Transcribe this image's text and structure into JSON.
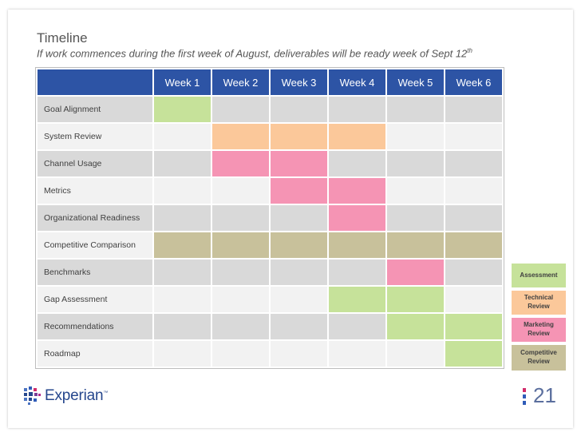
{
  "title": "Timeline",
  "subtitle": "If work commences during the first week of August, deliverables will be ready week of Sept 12",
  "subtitle_sup": "th",
  "weeks": [
    "Week 1",
    "Week 2",
    "Week 3",
    "Week 4",
    "Week 5",
    "Week 6"
  ],
  "colors": {
    "header": "#2d54a5",
    "green": "#c6e29a",
    "orange": "#fbc89a",
    "pink": "#f594b4",
    "khaki": "#c8c19b",
    "row_dark": "#d9d9d9",
    "row_light": "#f2f2f2"
  },
  "tasks": [
    {
      "label": "Goal Alignment",
      "cells": [
        "green",
        "",
        "",
        "",
        "",
        ""
      ]
    },
    {
      "label": "System Review",
      "cells": [
        "",
        "orange",
        "orange",
        "orange",
        "",
        ""
      ]
    },
    {
      "label": "Channel Usage",
      "cells": [
        "",
        "pink",
        "pink",
        "",
        "",
        ""
      ]
    },
    {
      "label": "Metrics",
      "cells": [
        "",
        "",
        "pink",
        "pink",
        "",
        ""
      ]
    },
    {
      "label": "Organizational Readiness",
      "cells": [
        "",
        "",
        "",
        "pink",
        "",
        ""
      ]
    },
    {
      "label": "Competitive Comparison",
      "cells": [
        "khaki",
        "khaki",
        "khaki",
        "khaki",
        "khaki",
        "khaki"
      ]
    },
    {
      "label": "Benchmarks",
      "cells": [
        "",
        "",
        "",
        "",
        "pink",
        ""
      ]
    },
    {
      "label": "Gap Assessment",
      "cells": [
        "",
        "",
        "",
        "green",
        "green",
        ""
      ]
    },
    {
      "label": "Recommendations",
      "cells": [
        "",
        "",
        "",
        "",
        "green",
        "green"
      ]
    },
    {
      "label": "Roadmap",
      "cells": [
        "",
        "",
        "",
        "",
        "",
        "green"
      ]
    }
  ],
  "legend": [
    {
      "line1": "Assessment",
      "line2": "",
      "color": "green"
    },
    {
      "line1": "Technical",
      "line2": "Review",
      "color": "orange"
    },
    {
      "line1": "Marketing",
      "line2": "Review",
      "color": "pink"
    },
    {
      "line1": "Competitive",
      "line2": "Review",
      "color": "khaki"
    }
  ],
  "logo": {
    "text": "Experian",
    "mark": "™"
  },
  "page_number": "21"
}
